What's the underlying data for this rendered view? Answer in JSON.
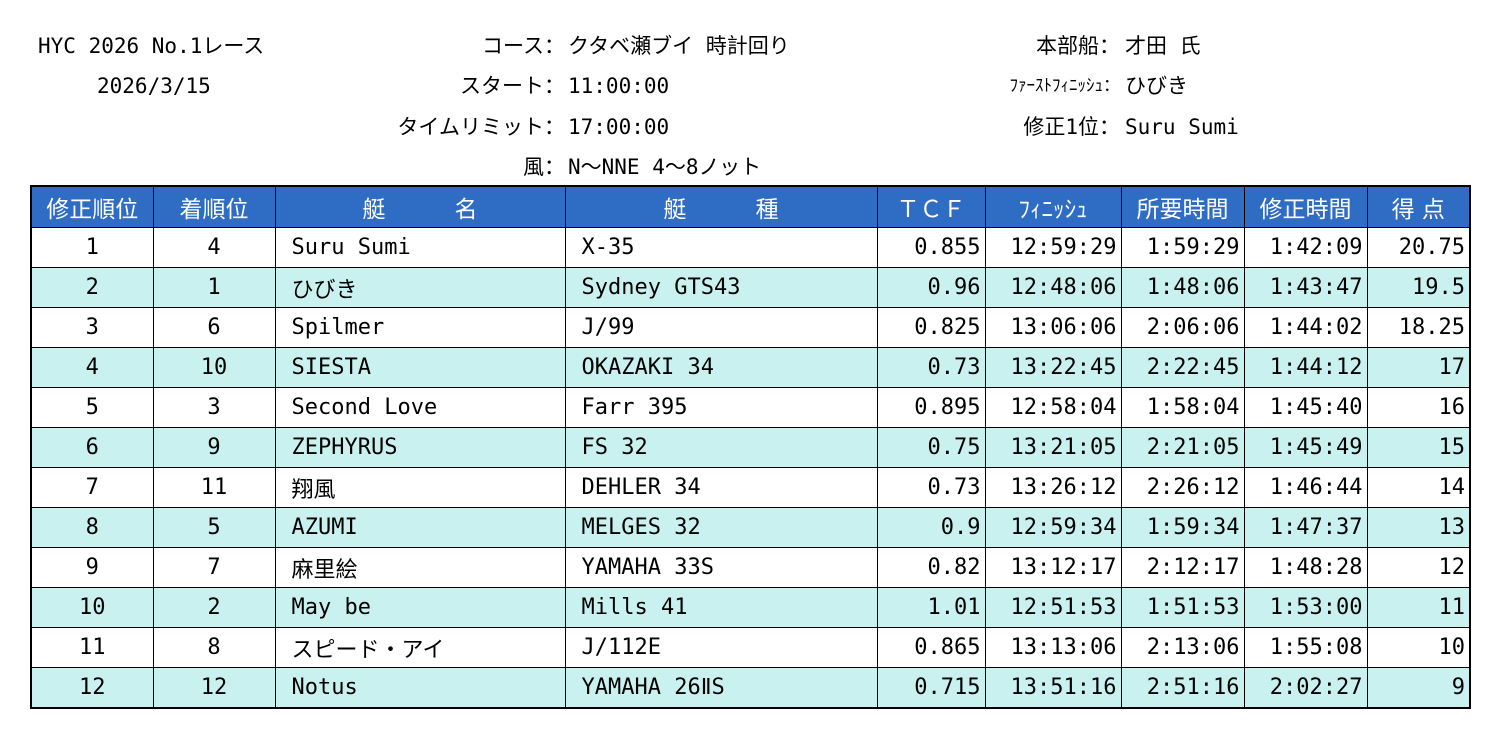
{
  "header": {
    "race_title": "HYC 2026 No.1レース",
    "date": "2026/3/15",
    "course_label": "コース：",
    "course_value": "クタベ瀬ブイ 時計回り",
    "start_label": "スタート：",
    "start_value": "11:00:00",
    "timelimit_label": "タイムリミット：",
    "timelimit_value": "17:00:00",
    "wind_label": "風：",
    "wind_value": "N～NNE 4～8ノット",
    "hq_label": "本部船：",
    "hq_value": "才田 氏",
    "first_finish_label": "ﾌｧｰｽﾄﾌｨﾆｯｼｭ：",
    "first_finish_value": "ひびき",
    "corrected_first_label": "修正1位：",
    "corrected_first_value": "Suru Sumi"
  },
  "columns": [
    "修正順位",
    "着順位",
    "艇　　　名",
    "艇　　　種",
    "ＴＣＦ",
    "ﾌｨﾆｯｼｭ",
    "所要時間",
    "修正時間",
    "得 点"
  ],
  "rows": [
    {
      "rank": "1",
      "finish_order": "4",
      "boat": "Suru Sumi",
      "type": "X-35",
      "tcf": "0.855",
      "finish": "12:59:29",
      "elapsed": "1:59:29",
      "corrected": "1:42:09",
      "points": "20.75"
    },
    {
      "rank": "2",
      "finish_order": "1",
      "boat": "ひびき",
      "type": "Sydney GTS43",
      "tcf": "0.96",
      "finish": "12:48:06",
      "elapsed": "1:48:06",
      "corrected": "1:43:47",
      "points": "19.5"
    },
    {
      "rank": "3",
      "finish_order": "6",
      "boat": "Spilmer",
      "type": "J/99",
      "tcf": "0.825",
      "finish": "13:06:06",
      "elapsed": "2:06:06",
      "corrected": "1:44:02",
      "points": "18.25"
    },
    {
      "rank": "4",
      "finish_order": "10",
      "boat": "SIESTA",
      "type": "OKAZAKI 34",
      "tcf": "0.73",
      "finish": "13:22:45",
      "elapsed": "2:22:45",
      "corrected": "1:44:12",
      "points": "17"
    },
    {
      "rank": "5",
      "finish_order": "3",
      "boat": "Second Love",
      "type": "Farr 395",
      "tcf": "0.895",
      "finish": "12:58:04",
      "elapsed": "1:58:04",
      "corrected": "1:45:40",
      "points": "16"
    },
    {
      "rank": "6",
      "finish_order": "9",
      "boat": "ZEPHYRUS",
      "type": "FS 32",
      "tcf": "0.75",
      "finish": "13:21:05",
      "elapsed": "2:21:05",
      "corrected": "1:45:49",
      "points": "15"
    },
    {
      "rank": "7",
      "finish_order": "11",
      "boat": "翔風",
      "type": "DEHLER 34",
      "tcf": "0.73",
      "finish": "13:26:12",
      "elapsed": "2:26:12",
      "corrected": "1:46:44",
      "points": "14"
    },
    {
      "rank": "8",
      "finish_order": "5",
      "boat": "AZUMI",
      "type": "MELGES 32",
      "tcf": "0.9",
      "finish": "12:59:34",
      "elapsed": "1:59:34",
      "corrected": "1:47:37",
      "points": "13"
    },
    {
      "rank": "9",
      "finish_order": "7",
      "boat": "麻里絵",
      "type": "YAMAHA 33S",
      "tcf": "0.82",
      "finish": "13:12:17",
      "elapsed": "2:12:17",
      "corrected": "1:48:28",
      "points": "12"
    },
    {
      "rank": "10",
      "finish_order": "2",
      "boat": "May be",
      "type": "Mills 41",
      "tcf": "1.01",
      "finish": "12:51:53",
      "elapsed": "1:51:53",
      "corrected": "1:53:00",
      "points": "11"
    },
    {
      "rank": "11",
      "finish_order": "8",
      "boat": "スピード・アイ",
      "type": "J/112E",
      "tcf": "0.865",
      "finish": "13:13:06",
      "elapsed": "2:13:06",
      "corrected": "1:55:08",
      "points": "10"
    },
    {
      "rank": "12",
      "finish_order": "12",
      "boat": "Notus",
      "type": "YAMAHA 26ⅡS",
      "tcf": "0.715",
      "finish": "13:51:16",
      "elapsed": "2:51:16",
      "corrected": "2:02:27",
      "points": "9"
    }
  ],
  "colors": {
    "header_bg": "#2f6cc3",
    "row_alt_bg": "#c8f1ef",
    "row_bg": "#ffffff"
  }
}
